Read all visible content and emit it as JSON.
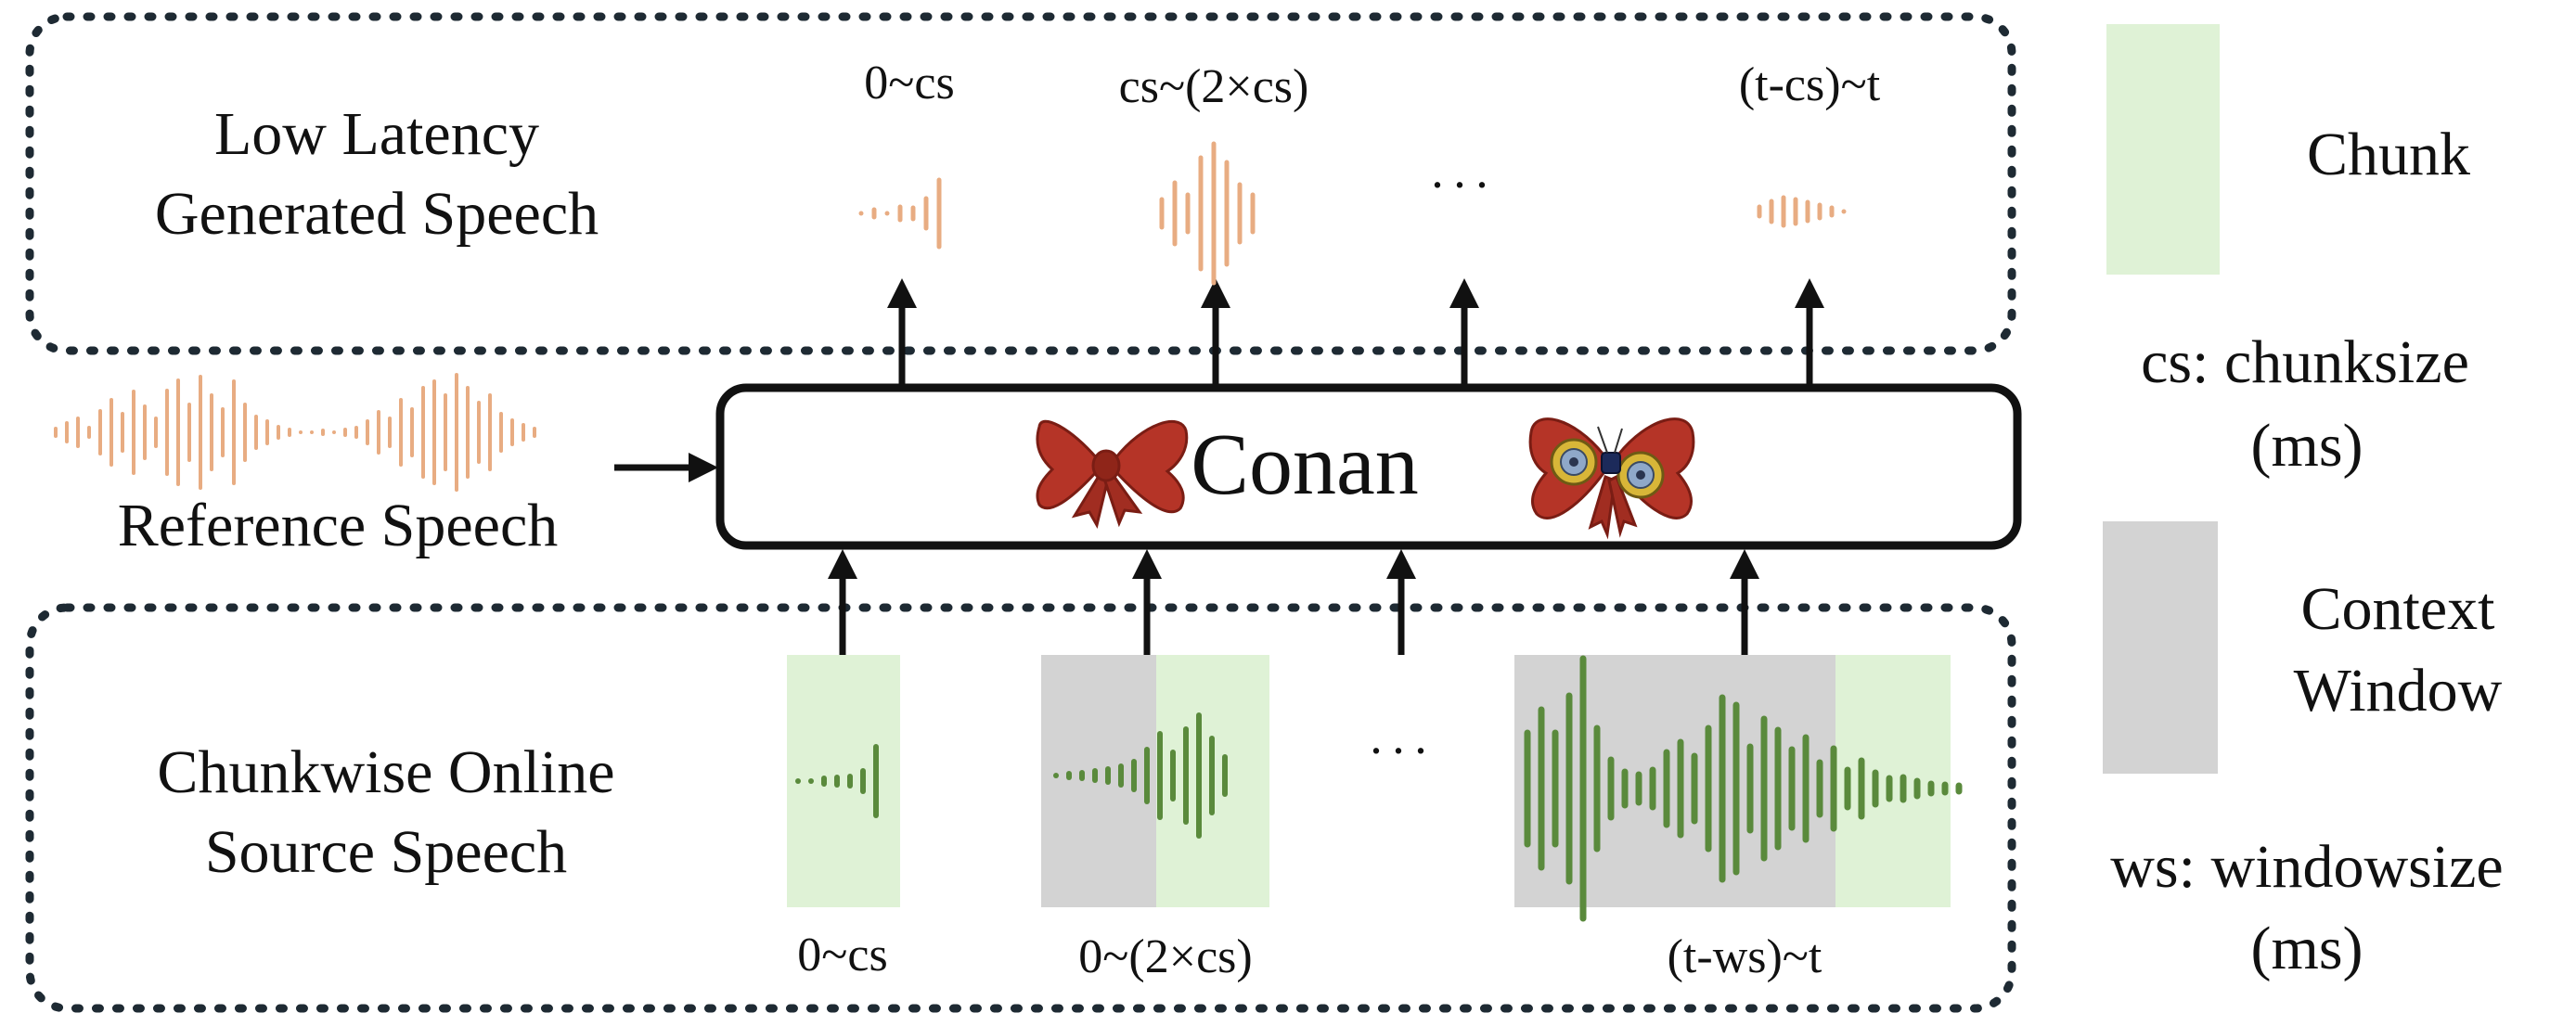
{
  "colors": {
    "chunk": "#dff2d6",
    "context_window": "#d3d3d3",
    "generated_wave": "#e8ac82",
    "reference_wave": "#e8ac82",
    "source_wave": "#5a8a3c",
    "box_border": "#111111",
    "dotted_border": "#1e2a33",
    "bow_red": "#b53427",
    "bow_dark": "#7a1d14",
    "gadget_gold": "#d8b638",
    "gadget_blue": "#8fa8c9"
  },
  "top_panel": {
    "title_line1": "Low Latency",
    "title_line2": "Generated Speech",
    "chunk_labels": [
      "0~cs",
      "cs~(2×cs)",
      "(t-cs)~t"
    ],
    "ellipsis": "···"
  },
  "middle": {
    "model_name": "Conan",
    "reference_label": "Reference Speech",
    "bow_icons": [
      "bow-tie-icon",
      "voice-changer-bow-tie-icon"
    ]
  },
  "bottom_panel": {
    "title_line1": "Chunkwise Online",
    "title_line2": "Source Speech",
    "window_labels": [
      "0~cs",
      "0~(2×cs)",
      "(t-ws)~t"
    ],
    "ellipsis": "···"
  },
  "legend": {
    "chunk_label": "Chunk",
    "cs_line1": "cs: chunksize",
    "cs_line2": "(ms)",
    "context_line1": "Context",
    "context_line2": "Window",
    "ws_line1": "ws: windowsize",
    "ws_line2": "(ms)"
  }
}
